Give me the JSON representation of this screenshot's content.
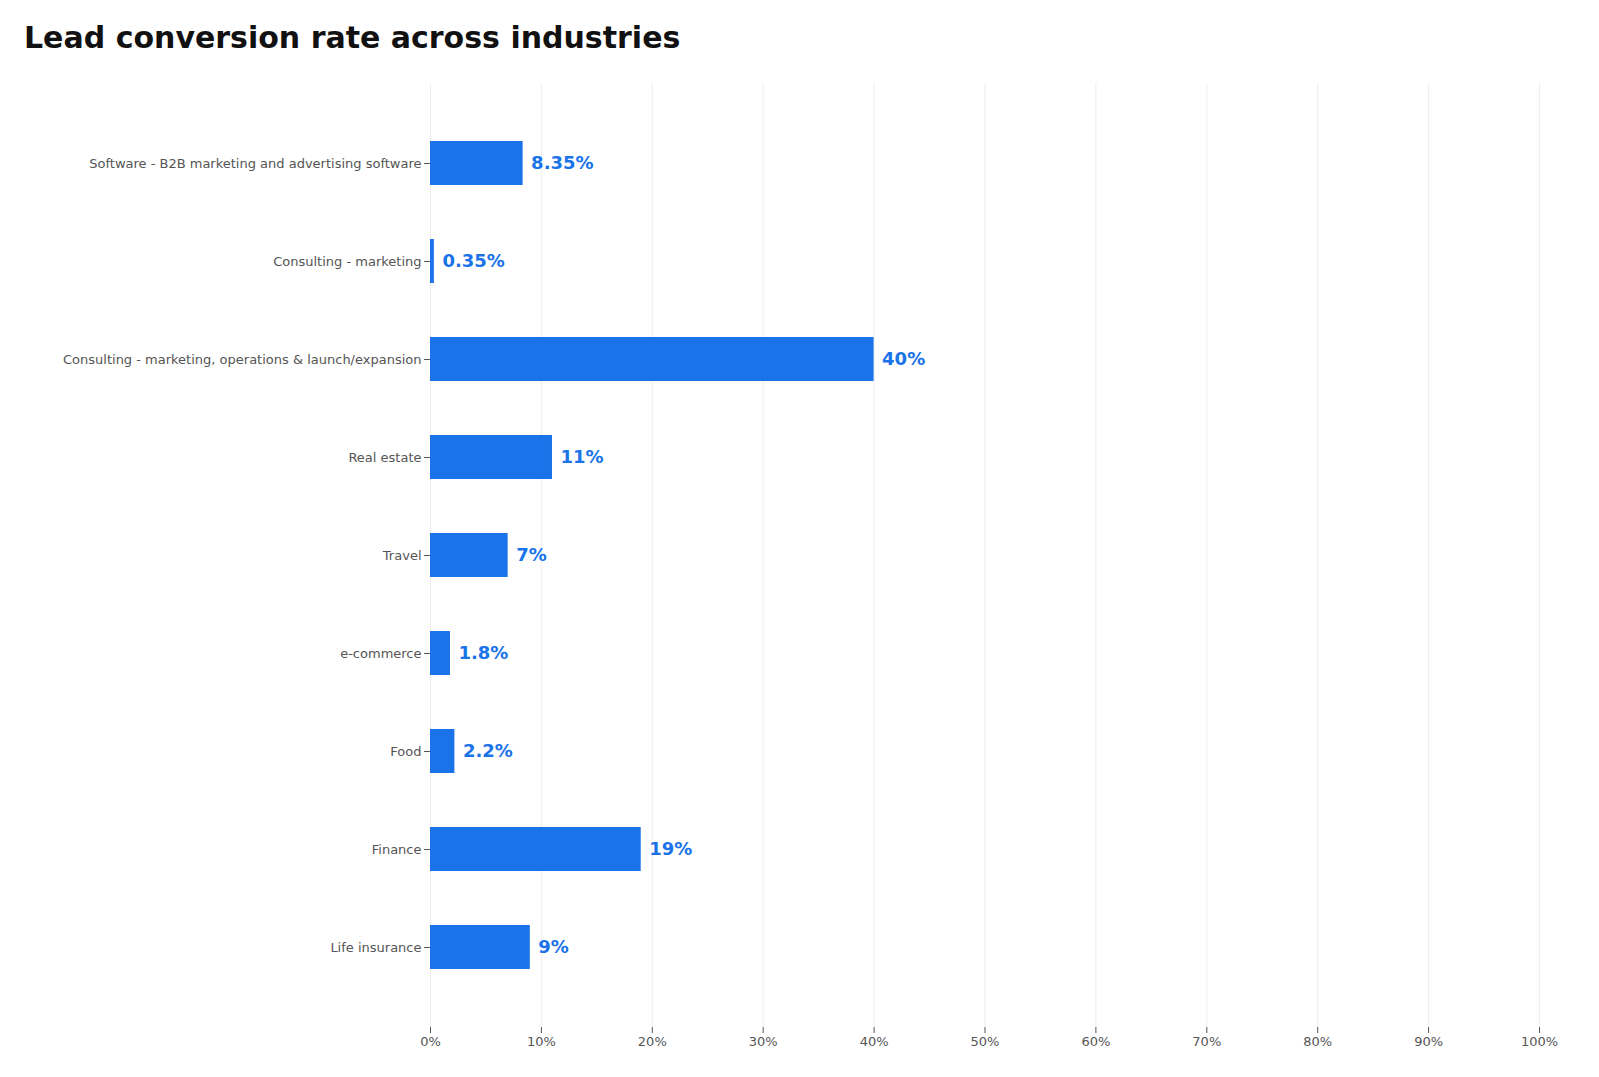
{
  "chart_data": {
    "type": "bar",
    "orientation": "horizontal",
    "title": "Lead conversion rate across industries",
    "categories": [
      "Life insurance",
      "Finance",
      "Food",
      "e-commerce",
      "Travel",
      "Real estate",
      "Consulting - marketing, operations & launch/expansion",
      "Consulting - marketing",
      "Software - B2B marketing and advertising software"
    ],
    "values": [
      9,
      19,
      2.2,
      1.8,
      7,
      11,
      40,
      0.35,
      8.35
    ],
    "value_labels": [
      "9%",
      "19%",
      "2.2%",
      "1.8%",
      "7%",
      "11%",
      "40%",
      "0.35%",
      "8.35%"
    ],
    "data_labels": true,
    "color": "#1a73e8",
    "xlim": [
      0,
      100
    ],
    "xticks": [
      {
        "value": 0,
        "label": "0%"
      },
      {
        "value": 10,
        "label": "10%"
      },
      {
        "value": 20,
        "label": "20%"
      },
      {
        "value": 30,
        "label": "30%"
      },
      {
        "value": 40,
        "label": "40%"
      },
      {
        "value": 50,
        "label": "50%"
      },
      {
        "value": 60,
        "label": "60%"
      },
      {
        "value": 70,
        "label": "70%"
      },
      {
        "value": 80,
        "label": "80%"
      },
      {
        "value": 90,
        "label": "90%"
      },
      {
        "value": 100,
        "label": "100%"
      }
    ],
    "grid": true
  }
}
